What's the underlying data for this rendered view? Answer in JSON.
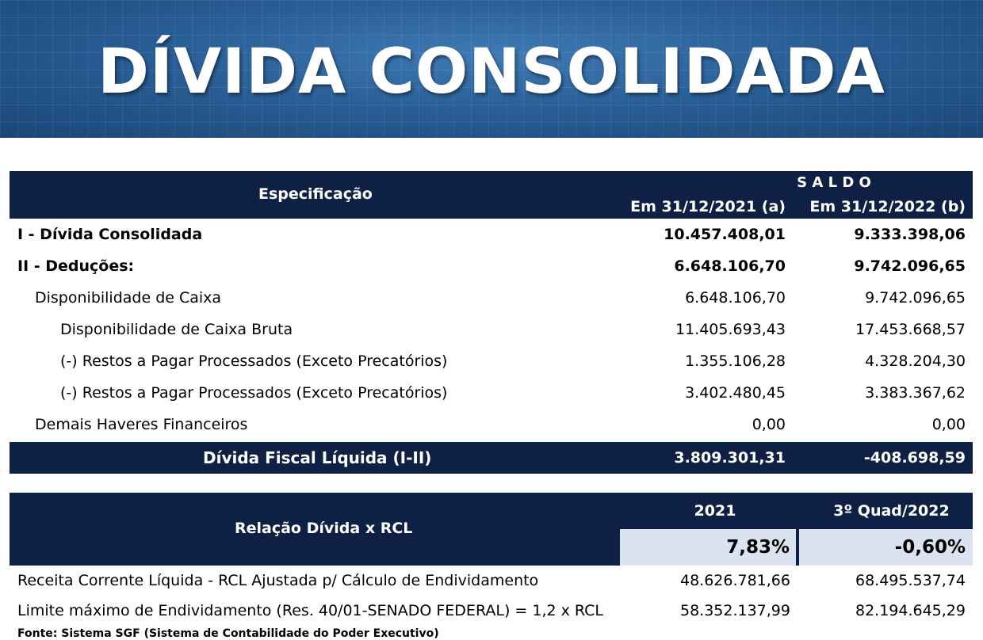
{
  "banner": {
    "title": "DÍVIDA CONSOLIDADA"
  },
  "debt_table": {
    "col_spec": "Especificação",
    "col_group": "S A L D O",
    "col_a": "Em 31/12/2021 (a)",
    "col_b": "Em 31/12/2022 (b)",
    "rows": [
      {
        "label": "I - Dívida Consolidada",
        "a": "10.457.408,01",
        "b": "9.333.398,06"
      },
      {
        "label": "II - Deduções:",
        "a": "6.648.106,70",
        "b": "9.742.096,65"
      },
      {
        "label": "Disponibilidade de Caixa",
        "a": "6.648.106,70",
        "b": "9.742.096,65"
      },
      {
        "label": "Disponibilidade de Caixa Bruta",
        "a": "11.405.693,43",
        "b": "17.453.668,57"
      },
      {
        "label": "(-) Restos a Pagar Processados (Exceto Precatórios)",
        "a": "1.355.106,28",
        "b": "4.328.204,30"
      },
      {
        "label": "(-) Restos a Pagar Processados (Exceto Precatórios)",
        "a": "3.402.480,45",
        "b": "3.383.367,62"
      },
      {
        "label": "Demais Haveres Financeiros",
        "a": "0,00",
        "b": "0,00"
      }
    ],
    "total": {
      "label": "Dívida Fiscal Líquida (I-II)",
      "a": "3.809.301,31",
      "b": "-408.698,59"
    }
  },
  "rcl_table": {
    "title": "Relação Dívida x RCL",
    "col_a": "2021",
    "col_b": "3º Quad/2022",
    "pct_a": "7,83%",
    "pct_b": "-0,60%",
    "rows": [
      {
        "label": "Receita Corrente Líquida - RCL  Ajustada p/ Cálculo de Endividamento",
        "a": "48.626.781,66",
        "b": "68.495.537,74"
      },
      {
        "label": "Limite máximo de Endividamento (Res. 40/01-SENADO FEDERAL) = 1,2 x RCL",
        "a": "58.352.137,99",
        "b": "82.194.645,29"
      }
    ]
  },
  "source_note": "Fonte: Sistema SGF (Sistema de Contabilidade do Poder Executivo)"
}
